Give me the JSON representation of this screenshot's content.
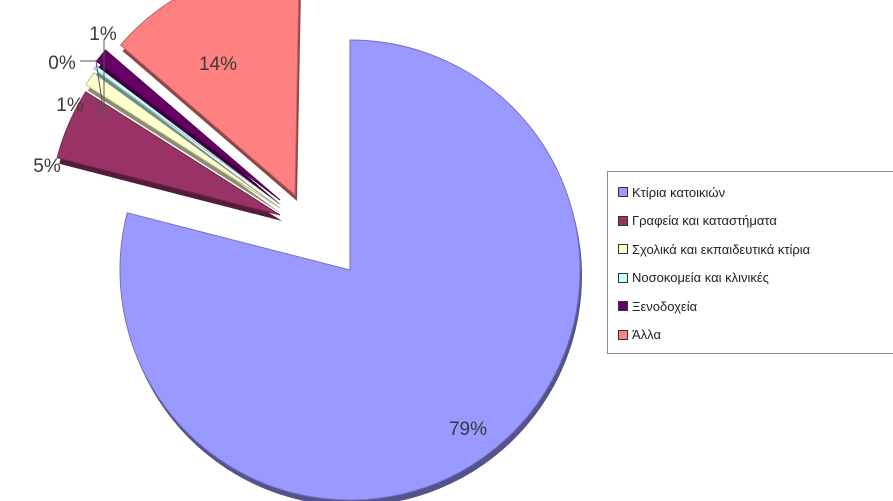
{
  "chart_data": {
    "type": "pie",
    "exploded": true,
    "categories": [
      "Κτίρια κατοικιών",
      "Γραφεία και καταστήματα",
      "Σχολικά και εκπαιδευτικά κτίρια",
      "Νοσοκομεία και κλινικές",
      "Ξενοδοχεία",
      "Άλλα"
    ],
    "values": [
      79,
      5,
      1,
      0,
      1,
      14
    ],
    "value_labels": [
      "79%",
      "5%",
      "1%",
      "0%",
      "1%",
      "14%"
    ],
    "colors": [
      "#9999ff",
      "#993366",
      "#ffffcc",
      "#ccffff",
      "#660066",
      "#ff8080"
    ],
    "legend_position": "right"
  }
}
